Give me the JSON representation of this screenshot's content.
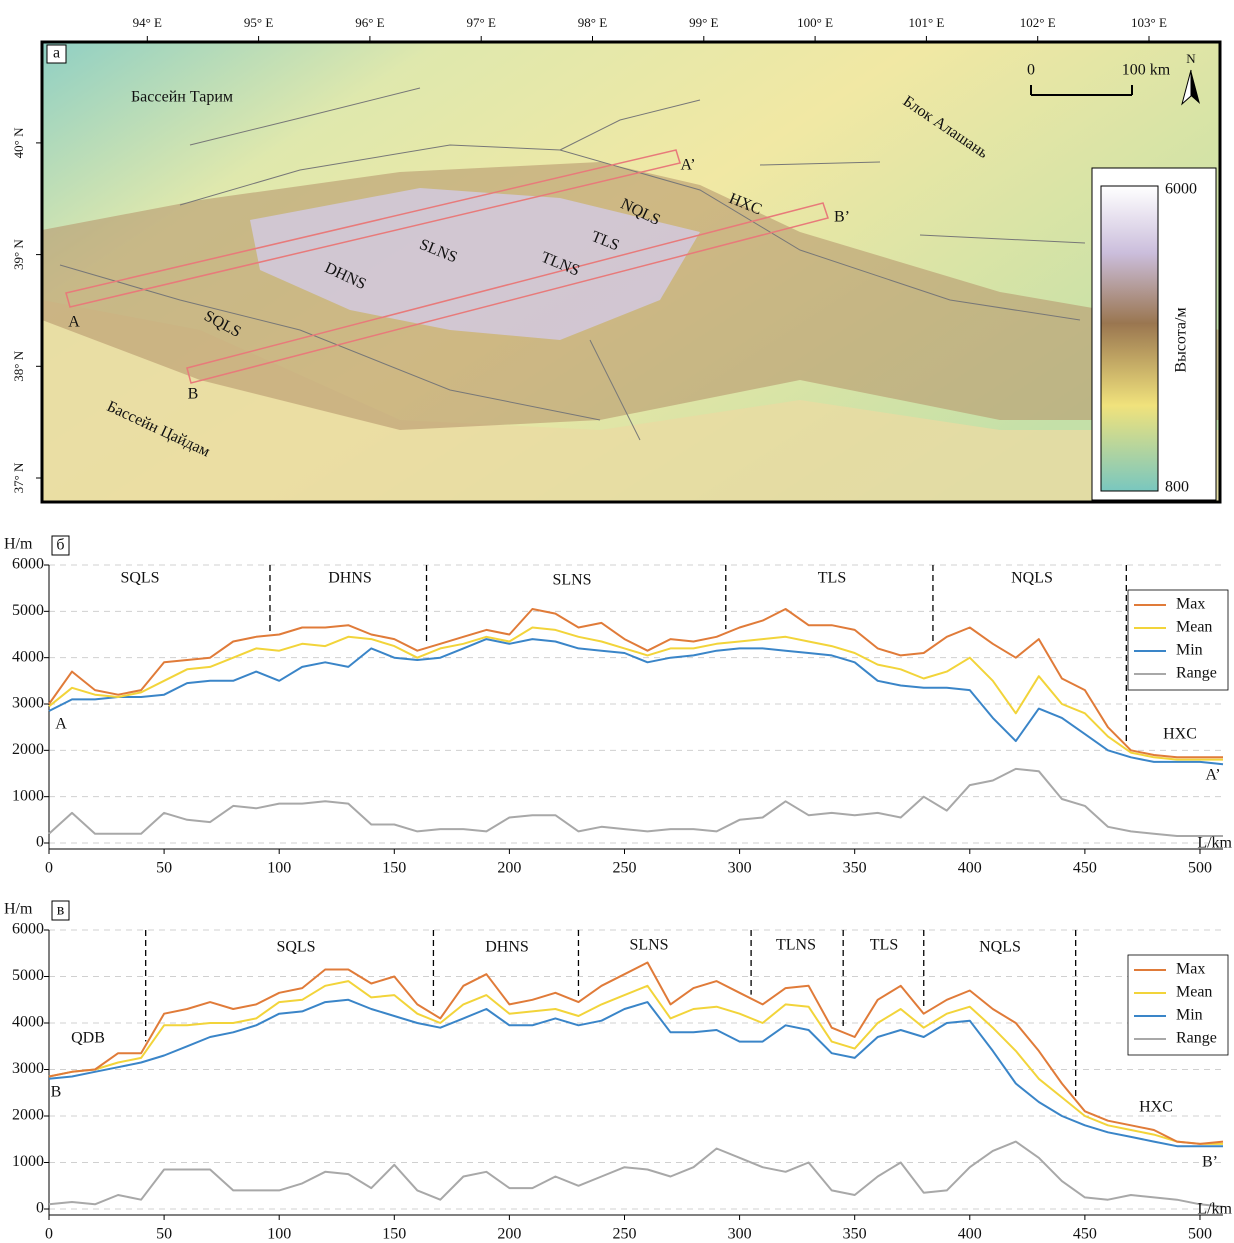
{
  "map": {
    "panel_label": "a",
    "lon_ticks": [
      {
        "value": 94,
        "label": "94° E"
      },
      {
        "value": 95,
        "label": "95° E"
      },
      {
        "value": 96,
        "label": "96° E"
      },
      {
        "value": 97,
        "label": "97° E"
      },
      {
        "value": 98,
        "label": "98° E"
      },
      {
        "value": 99,
        "label": "99° E"
      },
      {
        "value": 100,
        "label": "100° E"
      },
      {
        "value": 101,
        "label": "101° E"
      },
      {
        "value": 102,
        "label": "102° E"
      },
      {
        "value": 103,
        "label": "103° E"
      }
    ],
    "lat_ticks": [
      {
        "value": 40,
        "label": "40° N"
      },
      {
        "value": 39,
        "label": "39° N"
      },
      {
        "value": 38,
        "label": "38° N"
      },
      {
        "value": 37,
        "label": "37° N"
      }
    ],
    "labels": [
      "Бассейн Тарим",
      "Блок Алашань",
      "Бассейн Цайдам",
      "DHNS",
      "SLNS",
      "TLNS",
      "NQLS",
      "TLS",
      "HXC",
      "SQLS",
      "A",
      "A’",
      "B",
      "B’"
    ],
    "scale": {
      "start": 0,
      "label": "100 km"
    },
    "north": "N",
    "legend": {
      "title": "Высота/м",
      "max": 6000,
      "min": 800
    }
  },
  "chart_data": [
    {
      "type": "line",
      "panel_label": "б",
      "y_label": "H/m",
      "x_label": "L/km",
      "start_label": "A",
      "end_label": "A’",
      "x": [
        0,
        10,
        20,
        30,
        40,
        50,
        60,
        70,
        80,
        90,
        100,
        110,
        120,
        130,
        140,
        150,
        160,
        170,
        180,
        190,
        200,
        210,
        220,
        230,
        240,
        250,
        260,
        270,
        280,
        290,
        300,
        310,
        320,
        330,
        340,
        350,
        360,
        370,
        380,
        390,
        400,
        410,
        420,
        430,
        440,
        450,
        460,
        470,
        480,
        490,
        500,
        510
      ],
      "series": [
        {
          "name": "Max",
          "color": "#e07b39",
          "values": [
            3000,
            3700,
            3300,
            3200,
            3300,
            3900,
            3950,
            4000,
            4350,
            4450,
            4500,
            4650,
            4650,
            4700,
            4500,
            4400,
            4150,
            4300,
            4450,
            4600,
            4500,
            5050,
            4950,
            4650,
            4750,
            4400,
            4150,
            4400,
            4350,
            4450,
            4650,
            4800,
            5050,
            4700,
            4700,
            4600,
            4200,
            4050,
            4100,
            4450,
            4650,
            4300,
            4000,
            4400,
            3550,
            3300,
            2500,
            2000,
            1900,
            1850,
            1850,
            1850
          ]
        },
        {
          "name": "Mean",
          "color": "#f2d43a",
          "values": [
            2950,
            3350,
            3200,
            3150,
            3250,
            3500,
            3750,
            3800,
            4000,
            4200,
            4150,
            4300,
            4250,
            4450,
            4400,
            4250,
            4000,
            4200,
            4300,
            4450,
            4350,
            4650,
            4600,
            4450,
            4350,
            4200,
            4050,
            4200,
            4200,
            4300,
            4350,
            4400,
            4450,
            4350,
            4250,
            4100,
            3850,
            3750,
            3550,
            3700,
            4000,
            3500,
            2800,
            3600,
            3000,
            2800,
            2300,
            1950,
            1850,
            1800,
            1800,
            1800
          ]
        },
        {
          "name": "Min",
          "color": "#3a85c8",
          "values": [
            2850,
            3100,
            3100,
            3150,
            3150,
            3200,
            3450,
            3500,
            3500,
            3700,
            3500,
            3800,
            3900,
            3800,
            4200,
            4000,
            3950,
            4000,
            4200,
            4400,
            4300,
            4400,
            4350,
            4200,
            4150,
            4100,
            3900,
            4000,
            4050,
            4150,
            4200,
            4200,
            4150,
            4100,
            4050,
            3900,
            3500,
            3400,
            3350,
            3350,
            3300,
            2700,
            2200,
            2900,
            2700,
            2350,
            2000,
            1850,
            1750,
            1750,
            1750,
            1700
          ]
        },
        {
          "name": "Range",
          "color": "#a8a8a8",
          "values": [
            200,
            650,
            200,
            200,
            200,
            650,
            500,
            450,
            800,
            750,
            850,
            850,
            900,
            850,
            400,
            400,
            250,
            300,
            300,
            250,
            550,
            600,
            600,
            250,
            350,
            300,
            250,
            300,
            300,
            250,
            500,
            550,
            900,
            600,
            650,
            600,
            650,
            550,
            1000,
            700,
            1250,
            1350,
            1600,
            1550,
            950,
            800,
            350,
            250,
            200,
            150,
            150,
            150
          ]
        }
      ],
      "xlim": [
        0,
        510
      ],
      "ylim": [
        0,
        6000
      ],
      "xticks": [
        0,
        50,
        100,
        150,
        200,
        250,
        300,
        350,
        400,
        450,
        500
      ],
      "yticks": [
        0,
        1000,
        2000,
        3000,
        4000,
        5000,
        6000
      ],
      "grid": true,
      "legend": "right",
      "boundaries": [
        96,
        164,
        294,
        384,
        468
      ],
      "section_labels": [
        "SQLS",
        "DHNS",
        "SLNS",
        "TLS",
        "NQLS",
        "HXC"
      ]
    },
    {
      "type": "line",
      "panel_label": "в",
      "y_label": "H/m",
      "x_label": "L/km",
      "start_label": "B",
      "end_label": "B’",
      "x": [
        0,
        10,
        20,
        30,
        40,
        50,
        60,
        70,
        80,
        90,
        100,
        110,
        120,
        130,
        140,
        150,
        160,
        170,
        180,
        190,
        200,
        210,
        220,
        230,
        240,
        250,
        260,
        270,
        280,
        290,
        300,
        310,
        320,
        330,
        340,
        350,
        360,
        370,
        380,
        390,
        400,
        410,
        420,
        430,
        440,
        450,
        460,
        470,
        480,
        490,
        500,
        510
      ],
      "series": [
        {
          "name": "Max",
          "color": "#e07b39",
          "values": [
            2850,
            2950,
            3000,
            3350,
            3350,
            4200,
            4300,
            4450,
            4300,
            4400,
            4650,
            4750,
            5150,
            5150,
            4850,
            5000,
            4400,
            4100,
            4800,
            5050,
            4400,
            4500,
            4650,
            4450,
            4800,
            5050,
            5300,
            4400,
            4750,
            4900,
            4650,
            4400,
            4750,
            4800,
            3900,
            3700,
            4500,
            4800,
            4200,
            4500,
            4700,
            4300,
            4000,
            3400,
            2700,
            2100,
            1900,
            1800,
            1700,
            1450,
            1400,
            1450
          ]
        },
        {
          "name": "Mean",
          "color": "#f2d43a",
          "values": [
            2850,
            2950,
            3000,
            3150,
            3250,
            3950,
            3950,
            4000,
            4000,
            4100,
            4450,
            4500,
            4800,
            4900,
            4550,
            4600,
            4200,
            4000,
            4400,
            4600,
            4200,
            4250,
            4300,
            4150,
            4400,
            4600,
            4800,
            4100,
            4300,
            4350,
            4200,
            4000,
            4400,
            4350,
            3600,
            3450,
            4000,
            4300,
            3900,
            4200,
            4350,
            3900,
            3400,
            2800,
            2400,
            2000,
            1800,
            1700,
            1600,
            1450,
            1400,
            1400
          ]
        },
        {
          "name": "Min",
          "color": "#3a85c8",
          "values": [
            2800,
            2850,
            2950,
            3050,
            3150,
            3300,
            3500,
            3700,
            3800,
            3950,
            4200,
            4250,
            4450,
            4500,
            4300,
            4150,
            4000,
            3900,
            4100,
            4300,
            3950,
            3950,
            4100,
            3950,
            4050,
            4300,
            4450,
            3800,
            3800,
            3850,
            3600,
            3600,
            3950,
            3850,
            3350,
            3250,
            3700,
            3850,
            3700,
            4000,
            4050,
            3400,
            2700,
            2300,
            2000,
            1800,
            1650,
            1550,
            1450,
            1350,
            1350,
            1350
          ]
        },
        {
          "name": "Range",
          "color": "#a8a8a8",
          "values": [
            100,
            150,
            100,
            300,
            200,
            850,
            850,
            850,
            400,
            400,
            400,
            550,
            800,
            750,
            450,
            950,
            400,
            200,
            700,
            800,
            450,
            450,
            700,
            500,
            700,
            900,
            850,
            700,
            900,
            1300,
            1100,
            900,
            800,
            1000,
            400,
            300,
            700,
            1000,
            350,
            400,
            900,
            1250,
            1450,
            1100,
            600,
            250,
            200,
            300,
            250,
            200,
            100,
            50
          ]
        }
      ],
      "xlim": [
        0,
        510
      ],
      "ylim": [
        0,
        6000
      ],
      "xticks": [
        0,
        50,
        100,
        150,
        200,
        250,
        300,
        350,
        400,
        450,
        500
      ],
      "yticks": [
        0,
        1000,
        2000,
        3000,
        4000,
        5000,
        6000
      ],
      "grid": true,
      "legend": "right",
      "boundaries": [
        42,
        167,
        230,
        305,
        345,
        380,
        446
      ],
      "section_labels": [
        "QDB",
        "SQLS",
        "DHNS",
        "SLNS",
        "TLNS",
        "TLS",
        "NQLS",
        "HXC"
      ]
    }
  ]
}
